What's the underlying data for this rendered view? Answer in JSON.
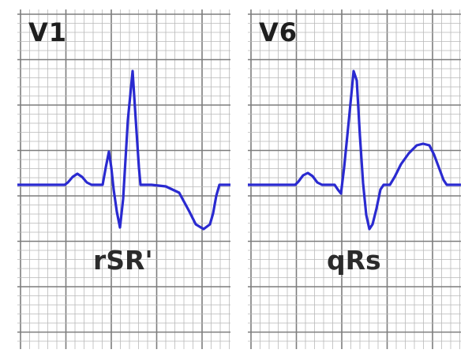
{
  "colors": {
    "grid_minor": "#b9b9b9",
    "grid_major": "#7d7d7d",
    "trace": "#2a2ad0",
    "background": "#ffffff"
  },
  "panels": [
    {
      "lead": "V1",
      "morphology": "rSR'"
    },
    {
      "lead": "V6",
      "morphology": "qRs"
    }
  ]
}
